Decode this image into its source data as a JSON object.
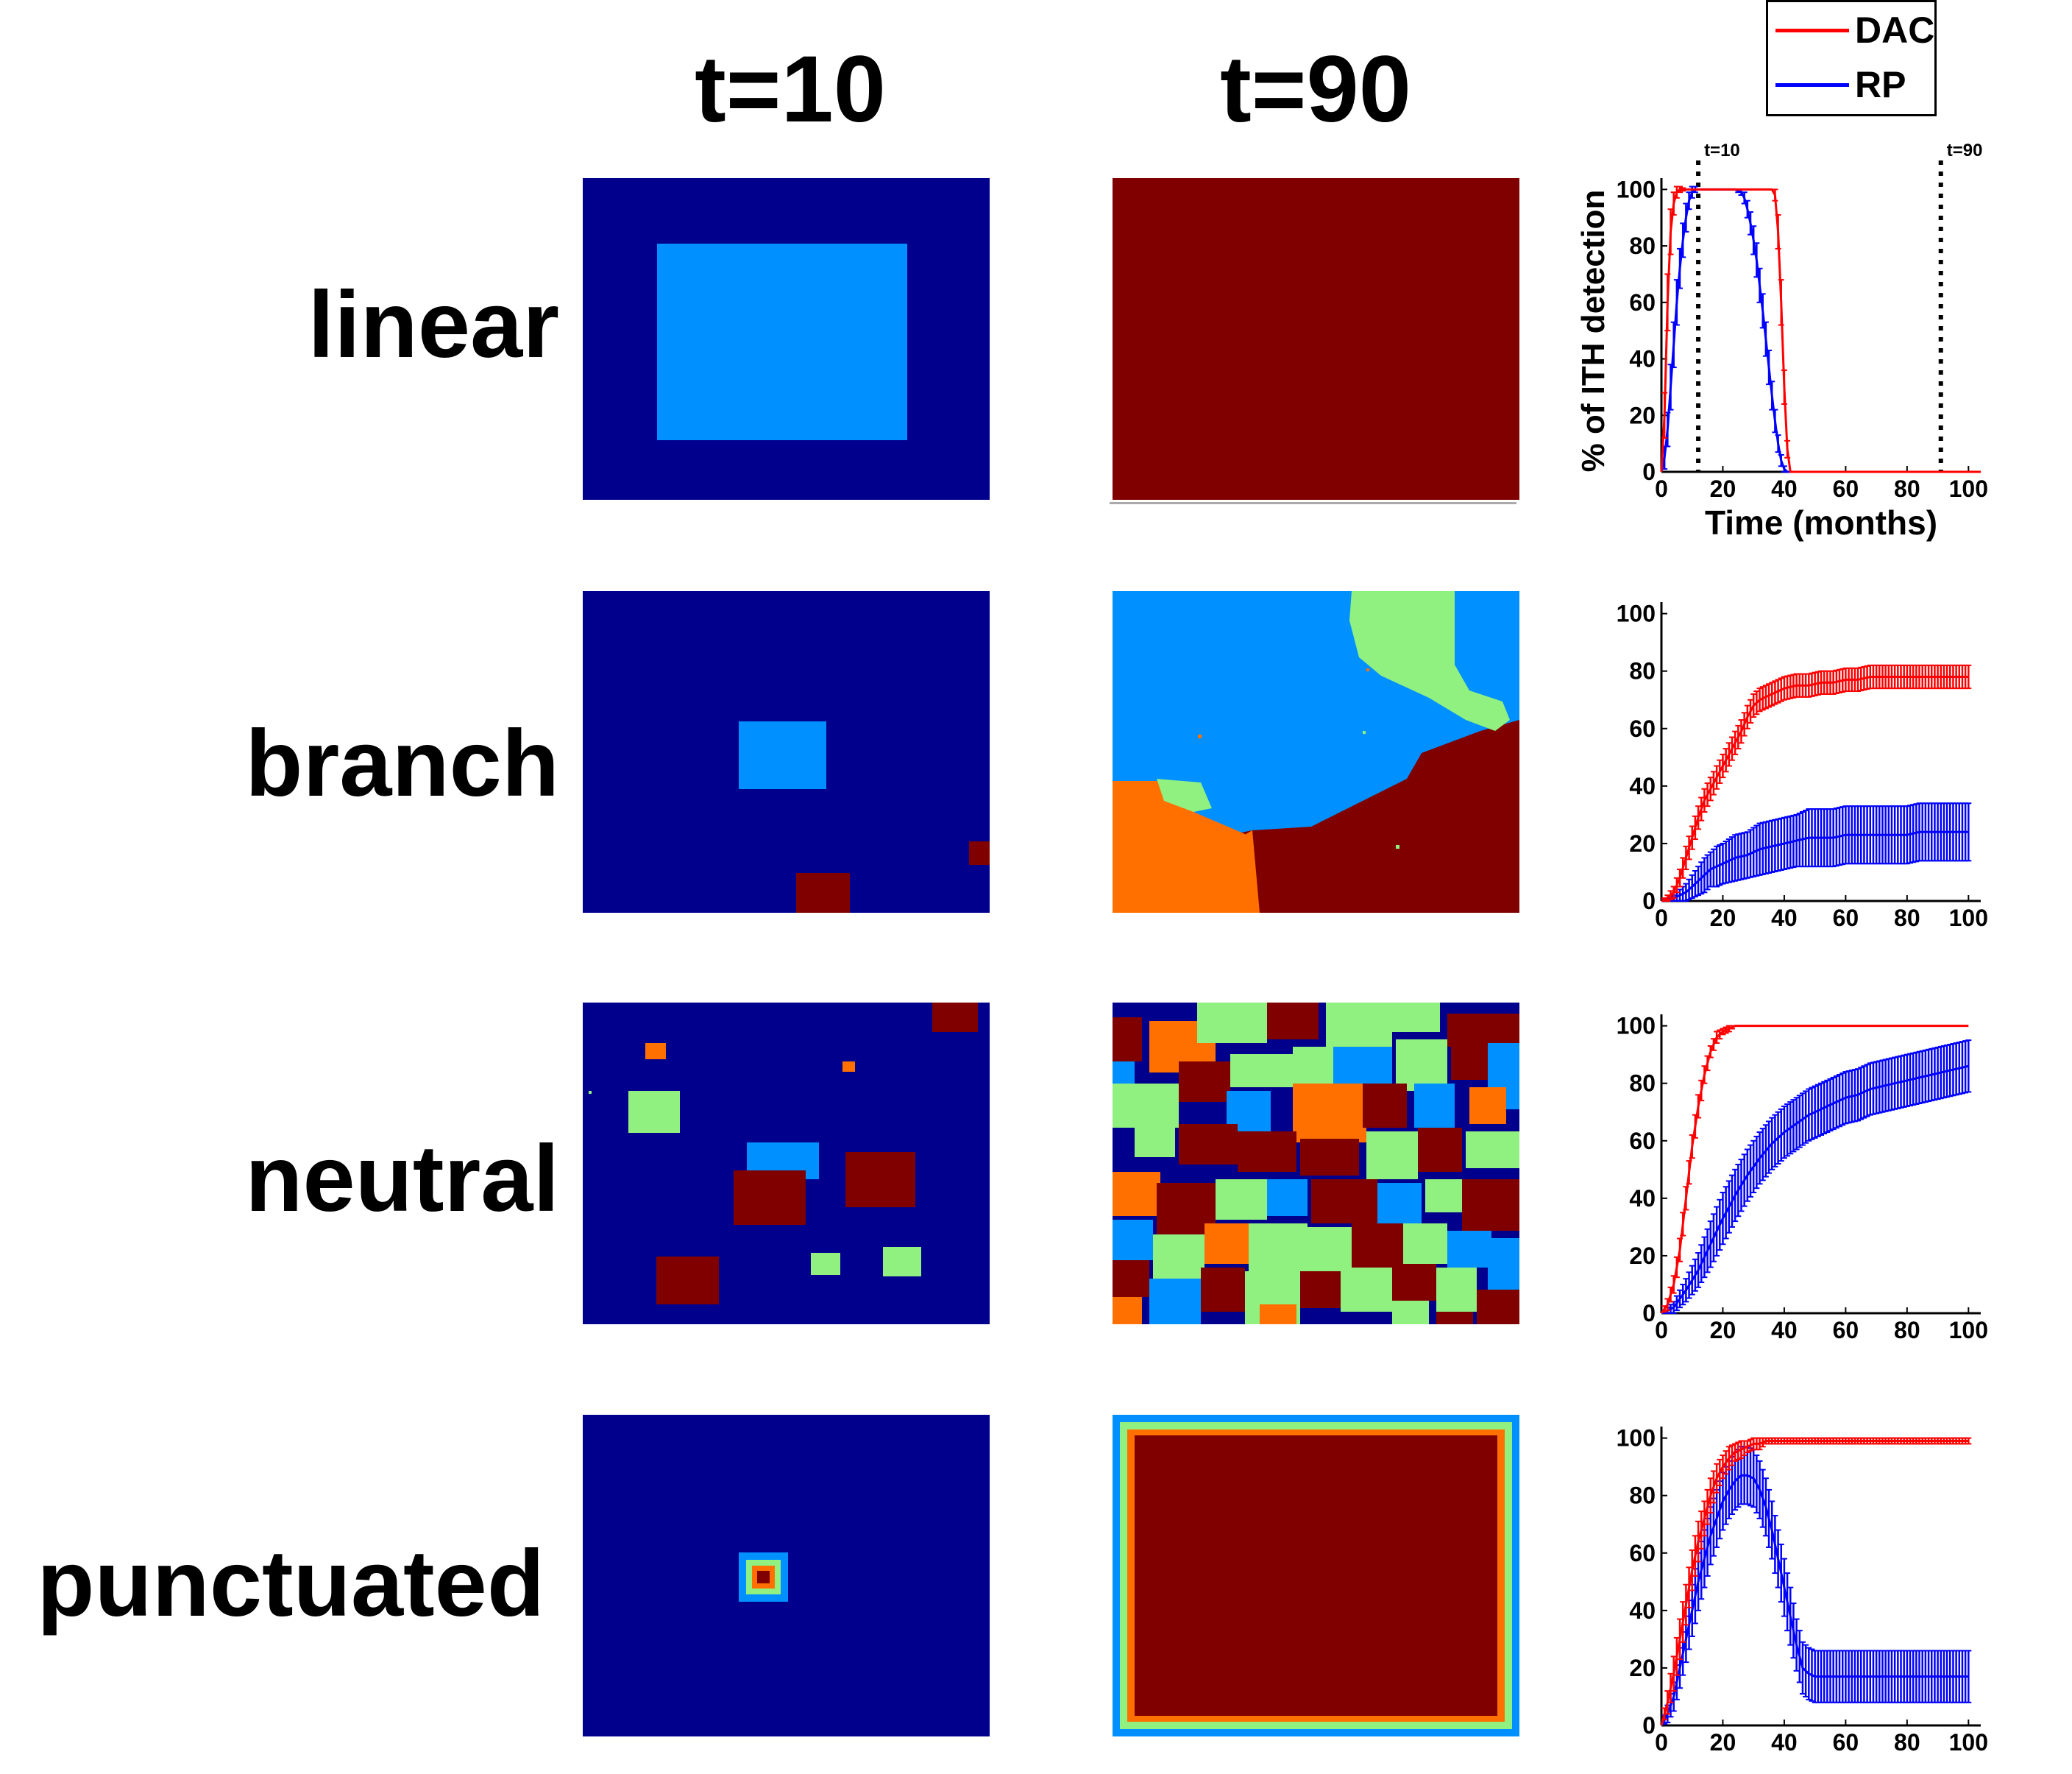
{
  "colors": {
    "background_blue": "#00008c",
    "light_blue": "#0090ff",
    "dark_red": "#800000",
    "orange": "#ff7000",
    "green": "#90f080",
    "dac_red": "#ff0000",
    "rp_blue": "#0000ff"
  },
  "column_titles": [
    "t=10",
    "t=90"
  ],
  "row_labels": [
    "linear",
    "branch",
    "neutral",
    "punctuated"
  ],
  "legend": {
    "items": [
      {
        "label": "DAC",
        "color": "#ff0000"
      },
      {
        "label": "RP",
        "color": "#0000ff"
      }
    ]
  },
  "chart_data": [
    {
      "type": "line",
      "panel": "linear",
      "xlabel": "Time (months)",
      "ylabel": "% of ITH detection",
      "xlim": [
        0,
        104
      ],
      "ylim": [
        0,
        104
      ],
      "xticks": [
        0,
        20,
        40,
        60,
        80,
        100
      ],
      "yticks": [
        0,
        20,
        40,
        60,
        80,
        100
      ],
      "vlines": [
        {
          "x": 12,
          "label": "t=10"
        },
        {
          "x": 91,
          "label": "t=90"
        }
      ],
      "series": [
        {
          "name": "DAC",
          "x": [
            0,
            1,
            2,
            3,
            4,
            5,
            6,
            8,
            10,
            12,
            14,
            16,
            18,
            20,
            22,
            24,
            26,
            28,
            30,
            32,
            34,
            35,
            36,
            37,
            38,
            39,
            40,
            41,
            42,
            50,
            60,
            70,
            80,
            90,
            100,
            104
          ],
          "y": [
            0,
            20,
            60,
            85,
            95,
            99,
            100,
            100,
            100,
            100,
            100,
            100,
            100,
            100,
            100,
            100,
            100,
            100,
            100,
            100,
            100,
            100,
            100,
            98,
            85,
            60,
            30,
            8,
            0,
            0,
            0,
            0,
            0,
            0,
            0,
            0
          ],
          "err": [
            0,
            8,
            10,
            8,
            4,
            2,
            1,
            0,
            0,
            0,
            0,
            0,
            0,
            0,
            0,
            0,
            0,
            0,
            0,
            0,
            0,
            0,
            0,
            2,
            6,
            8,
            6,
            3,
            0,
            0,
            0,
            0,
            0,
            0,
            0,
            0
          ]
        },
        {
          "name": "RP",
          "x": [
            0,
            1,
            2,
            3,
            4,
            5,
            6,
            7,
            8,
            9,
            10,
            11,
            12,
            14,
            16,
            18,
            20,
            22,
            24,
            26,
            27,
            28,
            29,
            30,
            31,
            32,
            33,
            34,
            35,
            36,
            37,
            38,
            39,
            40,
            41,
            50,
            60,
            70,
            80,
            90,
            100,
            104
          ],
          "y": [
            0,
            5,
            15,
            30,
            45,
            60,
            72,
            82,
            90,
            96,
            99,
            100,
            100,
            100,
            100,
            100,
            100,
            100,
            100,
            99,
            97,
            93,
            88,
            82,
            75,
            66,
            57,
            47,
            37,
            27,
            18,
            10,
            4,
            1,
            0,
            0,
            0,
            0,
            0,
            0,
            0,
            0
          ],
          "err": [
            0,
            4,
            6,
            8,
            8,
            8,
            7,
            6,
            5,
            3,
            2,
            1,
            0,
            0,
            0,
            0,
            0,
            0,
            0,
            1,
            2,
            3,
            4,
            5,
            6,
            6,
            6,
            6,
            6,
            5,
            4,
            3,
            2,
            1,
            0,
            0,
            0,
            0,
            0,
            0,
            0,
            0
          ]
        }
      ]
    },
    {
      "type": "line",
      "panel": "branch",
      "xlim": [
        0,
        104
      ],
      "ylim": [
        0,
        104
      ],
      "xticks": [
        0,
        20,
        40,
        60,
        80,
        100
      ],
      "yticks": [
        0,
        20,
        40,
        60,
        80,
        100
      ],
      "series": [
        {
          "name": "DAC",
          "x": [
            0,
            2,
            4,
            6,
            8,
            10,
            12,
            14,
            16,
            18,
            20,
            22,
            24,
            26,
            28,
            30,
            32,
            34,
            36,
            38,
            40,
            44,
            48,
            52,
            56,
            60,
            64,
            68,
            72,
            76,
            80,
            84,
            88,
            92,
            96,
            100
          ],
          "y": [
            0,
            1,
            3,
            8,
            15,
            22,
            29,
            35,
            39,
            43,
            47,
            51,
            55,
            59,
            64,
            68,
            70,
            71,
            72,
            73,
            74,
            75,
            75,
            76,
            76,
            77,
            77,
            78,
            78,
            78,
            78,
            78,
            78,
            78,
            78,
            78
          ],
          "err": [
            0,
            1,
            2,
            3,
            4,
            4,
            4,
            4,
            4,
            4,
            4,
            4,
            4,
            4,
            4,
            4,
            4,
            4,
            4,
            4,
            4,
            4,
            4,
            4,
            4,
            4,
            4,
            4,
            4,
            4,
            4,
            4,
            4,
            4,
            4,
            4
          ]
        },
        {
          "name": "RP",
          "x": [
            0,
            4,
            8,
            10,
            12,
            14,
            16,
            18,
            20,
            24,
            28,
            32,
            36,
            40,
            44,
            48,
            52,
            56,
            60,
            64,
            68,
            72,
            76,
            80,
            84,
            88,
            92,
            96,
            100
          ],
          "y": [
            0,
            1,
            3,
            5,
            7,
            9,
            11,
            12,
            13,
            15,
            16,
            18,
            19,
            20,
            21,
            22,
            22,
            22,
            23,
            23,
            23,
            23,
            23,
            23,
            24,
            24,
            24,
            24,
            24
          ],
          "err": [
            0,
            1,
            3,
            4,
            5,
            6,
            6,
            7,
            7,
            8,
            8,
            9,
            9,
            9,
            9,
            10,
            10,
            10,
            10,
            10,
            10,
            10,
            10,
            10,
            10,
            10,
            10,
            10,
            10
          ]
        }
      ]
    },
    {
      "type": "line",
      "panel": "neutral",
      "xlim": [
        0,
        104
      ],
      "ylim": [
        0,
        104
      ],
      "xticks": [
        0,
        20,
        40,
        60,
        80,
        100
      ],
      "yticks": [
        0,
        20,
        40,
        60,
        80,
        100
      ],
      "series": [
        {
          "name": "DAC",
          "x": [
            0,
            2,
            4,
            6,
            8,
            10,
            12,
            14,
            16,
            18,
            20,
            22,
            24,
            26,
            28,
            30,
            35,
            40,
            50,
            60,
            70,
            80,
            90,
            100
          ],
          "y": [
            0,
            3,
            10,
            22,
            40,
            58,
            72,
            83,
            91,
            96,
            98,
            99,
            100,
            100,
            100,
            100,
            100,
            100,
            100,
            100,
            100,
            100,
            100,
            100
          ],
          "err": [
            0,
            2,
            3,
            4,
            4,
            4,
            4,
            3,
            2,
            2,
            1,
            1,
            0,
            0,
            0,
            0,
            0,
            0,
            0,
            0,
            0,
            0,
            0,
            0
          ]
        },
        {
          "name": "RP",
          "x": [
            0,
            4,
            8,
            12,
            16,
            20,
            24,
            28,
            32,
            36,
            40,
            44,
            48,
            52,
            56,
            60,
            64,
            68,
            72,
            76,
            80,
            84,
            88,
            92,
            96,
            100
          ],
          "y": [
            0,
            2,
            8,
            15,
            24,
            33,
            41,
            48,
            54,
            59,
            63,
            66,
            69,
            71,
            73,
            75,
            76,
            78,
            79,
            80,
            81,
            82,
            83,
            84,
            85,
            86
          ],
          "err": [
            0,
            2,
            4,
            6,
            8,
            9,
            9,
            9,
            9,
            9,
            9,
            9,
            9,
            9,
            9,
            9,
            9,
            9,
            9,
            9,
            9,
            9,
            9,
            9,
            9,
            9
          ]
        }
      ]
    },
    {
      "type": "line",
      "panel": "punctuated",
      "xlim": [
        0,
        104
      ],
      "ylim": [
        0,
        104
      ],
      "xticks": [
        0,
        20,
        40,
        60,
        80,
        100
      ],
      "yticks": [
        0,
        20,
        40,
        60,
        80,
        100
      ],
      "series": [
        {
          "name": "DAC",
          "x": [
            0,
            2,
            4,
            6,
            8,
            10,
            12,
            14,
            16,
            18,
            20,
            22,
            24,
            26,
            28,
            30,
            32,
            34,
            36,
            40,
            50,
            60,
            70,
            80,
            90,
            100
          ],
          "y": [
            0,
            8,
            18,
            30,
            42,
            54,
            64,
            72,
            80,
            86,
            90,
            93,
            95,
            96,
            97,
            98,
            98,
            99,
            99,
            99,
            99,
            99,
            99,
            99,
            99,
            99
          ],
          "err": [
            0,
            4,
            6,
            7,
            7,
            7,
            7,
            6,
            6,
            5,
            4,
            4,
            3,
            3,
            2,
            2,
            2,
            1,
            1,
            1,
            1,
            1,
            1,
            1,
            1,
            1
          ]
        },
        {
          "name": "RP",
          "x": [
            0,
            2,
            4,
            6,
            8,
            10,
            12,
            14,
            16,
            18,
            20,
            22,
            24,
            26,
            28,
            30,
            32,
            34,
            36,
            38,
            40,
            42,
            44,
            46,
            48,
            50,
            52,
            56,
            60,
            70,
            80,
            90,
            100
          ],
          "y": [
            0,
            4,
            10,
            20,
            30,
            40,
            50,
            58,
            66,
            72,
            78,
            82,
            85,
            87,
            87,
            86,
            82,
            76,
            68,
            58,
            48,
            38,
            28,
            20,
            18,
            17,
            17,
            17,
            17,
            17,
            17,
            17,
            17
          ],
          "err": [
            0,
            3,
            5,
            7,
            8,
            9,
            10,
            10,
            10,
            10,
            10,
            10,
            10,
            10,
            10,
            10,
            10,
            10,
            10,
            10,
            10,
            10,
            9,
            9,
            9,
            9,
            9,
            9,
            9,
            9,
            9,
            9,
            9
          ]
        }
      ]
    }
  ]
}
